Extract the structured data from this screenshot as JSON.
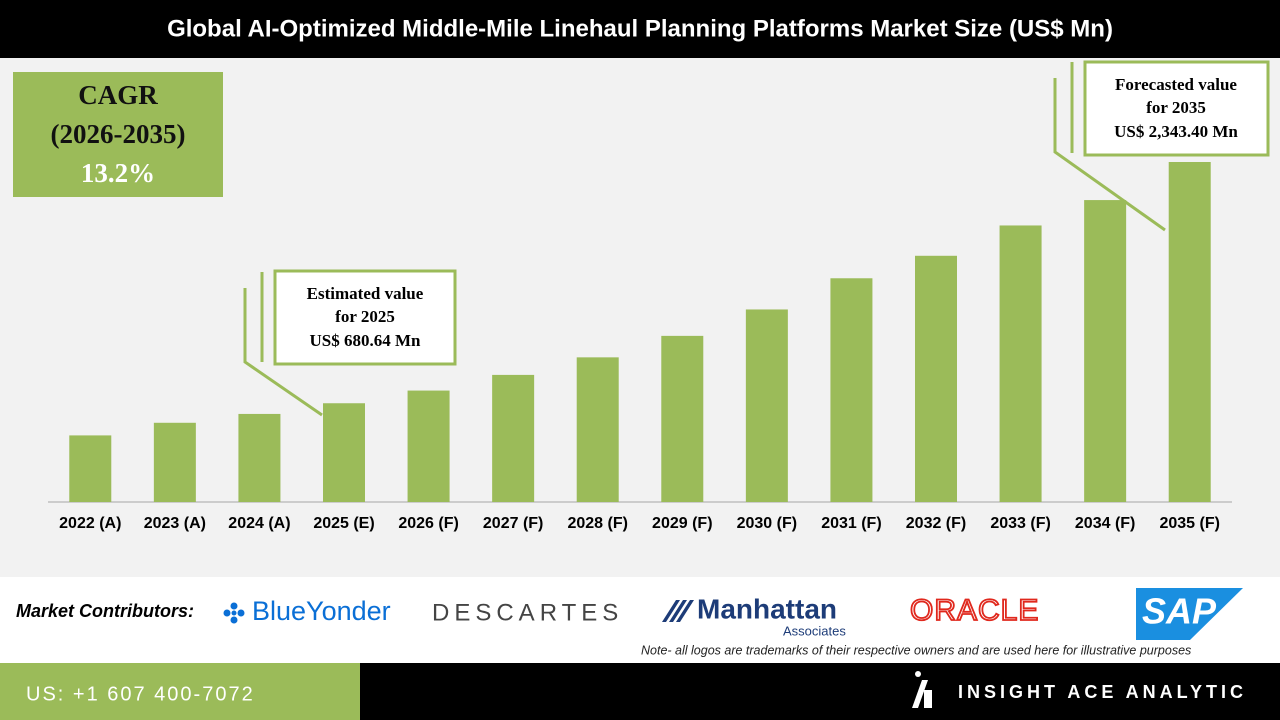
{
  "chart_data": {
    "type": "bar",
    "title": "Global AI-Optimized Middle-Mile Linehaul Planning Platforms Market Size (US$ Mn)",
    "categories": [
      "2022 (A)",
      "2023 (A)",
      "2024 (A)",
      "2025 (E)",
      "2026 (F)",
      "2027 (F)",
      "2028 (F)",
      "2029 (F)",
      "2030 (F)",
      "2031 (F)",
      "2032 (F)",
      "2033 (F)",
      "2034 (F)",
      "2035 (F)"
    ],
    "values": [
      459,
      546,
      607,
      680.64,
      768,
      876,
      997,
      1145,
      1327,
      1542,
      1697,
      1906,
      2081,
      2343.4
    ],
    "color": "#9bbb59",
    "cagr": [
      "CAGR",
      "(2026-2035)",
      "13.2%"
    ],
    "callouts": [
      {
        "lines": [
          "Estimated value",
          "for 2025",
          "US$ 680.64 Mn"
        ]
      },
      {
        "lines": [
          "Forecasted value",
          "for 2035",
          "US$ 2,343.40 Mn"
        ]
      }
    ]
  },
  "contributors": {
    "label": "Market Contributors:",
    "logos": [
      "BlueYonder",
      "DESCARTES",
      "Manhattan",
      "Associates",
      "ORACLE",
      "SAP"
    ],
    "note": "Note- all logos are trademarks of their respective owners and are used here for illustrative purposes"
  },
  "footer": {
    "phone": "US: +1 607 400-7072",
    "brand": "INSIGHT ACE ANALYTIC"
  }
}
